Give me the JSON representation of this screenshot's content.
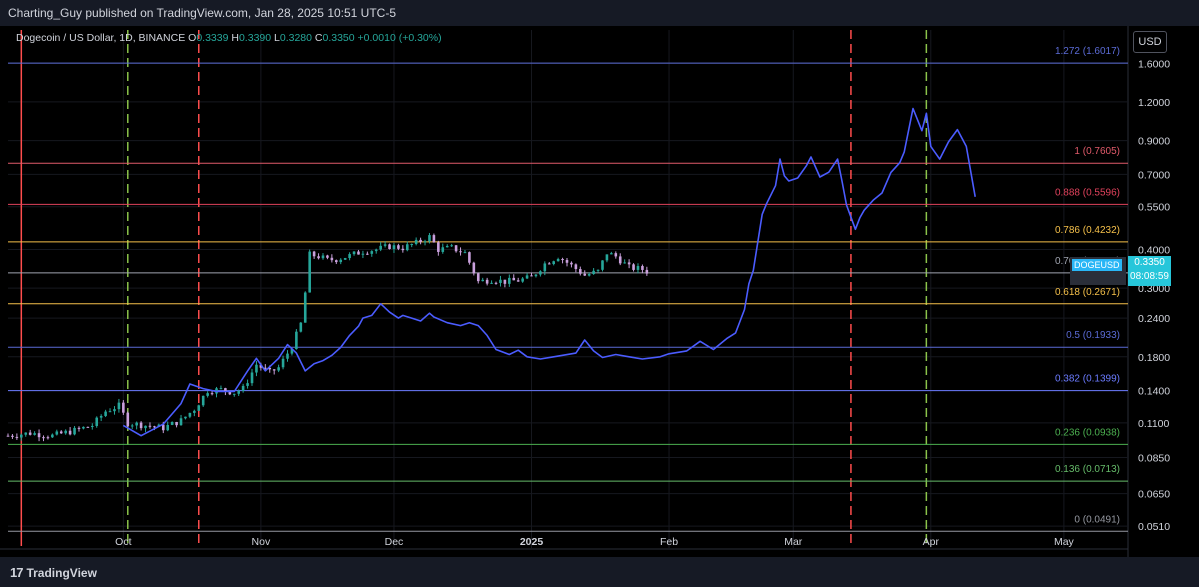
{
  "header": {
    "attribution": "Charting_Guy published on TradingView.com, Jan 28, 2025 10:51 UTC-5"
  },
  "legend": {
    "title": "Dogecoin / US Dollar, 1D, BINANCE",
    "open_label": "O",
    "open": "0.3339",
    "high_label": "H",
    "high": "0.3390",
    "low_label": "L",
    "low": "0.3280",
    "close_label": "C",
    "close": "0.3350",
    "change": "+0.0010 (+0.30%)"
  },
  "currency_button": "USD",
  "symbol_tag": "DOGEUSD",
  "current_price": "0.3350",
  "countdown": "08:08:59",
  "footer": {
    "logo_text": "TradingView"
  },
  "colors": {
    "background": "#000000",
    "candle_up": "#26a69a",
    "candle_down": "#c9a0dc",
    "projection": "#4b5cff",
    "red_vline": "#ff4d4d",
    "green_vline": "#8bc34a",
    "price_tag": "#26c6da"
  },
  "chart_data": {
    "type": "candlestick",
    "symbol": "DOGEUSD",
    "y_scale": "log",
    "ylim": [
      0.044,
      2.05
    ],
    "y_ticks": [
      1.6,
      1.2,
      0.9,
      0.7,
      0.55,
      0.4,
      0.3,
      0.24,
      0.18,
      0.14,
      0.11,
      0.085,
      0.065,
      0.051
    ],
    "y_tick_labels": [
      "1.6000",
      "1.2000",
      "0.9000",
      "0.7000",
      "0.5500",
      "0.4000",
      "0.3000",
      "0.2400",
      "0.1800",
      "0.1400",
      "0.1100",
      "0.0850",
      "0.0650",
      "0.0510"
    ],
    "x_range": [
      "2024-09-05",
      "2025-05-15"
    ],
    "x_ticks": [
      {
        "date": "2024-10-01",
        "label": "Oct"
      },
      {
        "date": "2024-11-01",
        "label": "Nov"
      },
      {
        "date": "2024-12-01",
        "label": "Dec"
      },
      {
        "date": "2025-01-01",
        "label": "2025"
      },
      {
        "date": "2025-02-01",
        "label": "Feb"
      },
      {
        "date": "2025-03-01",
        "label": "Mar"
      },
      {
        "date": "2025-04-01",
        "label": "Apr"
      },
      {
        "date": "2025-05-01",
        "label": "May"
      }
    ],
    "price_path": [
      [
        "2024-09-05",
        0.1
      ],
      [
        "2024-09-10",
        0.102
      ],
      [
        "2024-09-15",
        0.1
      ],
      [
        "2024-09-20",
        0.104
      ],
      [
        "2024-09-24",
        0.108
      ],
      [
        "2024-09-27",
        0.12
      ],
      [
        "2024-09-30",
        0.125
      ],
      [
        "2024-10-02",
        0.11
      ],
      [
        "2024-10-06",
        0.108
      ],
      [
        "2024-10-10",
        0.106
      ],
      [
        "2024-10-14",
        0.112
      ],
      [
        "2024-10-17",
        0.122
      ],
      [
        "2024-10-20",
        0.14
      ],
      [
        "2024-10-23",
        0.141
      ],
      [
        "2024-10-26",
        0.138
      ],
      [
        "2024-10-28",
        0.142
      ],
      [
        "2024-10-31",
        0.17
      ],
      [
        "2024-11-03",
        0.16
      ],
      [
        "2024-11-05",
        0.166
      ],
      [
        "2024-11-08",
        0.195
      ],
      [
        "2024-11-10",
        0.23
      ],
      [
        "2024-11-11",
        0.29
      ],
      [
        "2024-11-12",
        0.385
      ],
      [
        "2024-11-14",
        0.38
      ],
      [
        "2024-11-16",
        0.37
      ],
      [
        "2024-11-18",
        0.372
      ],
      [
        "2024-11-21",
        0.382
      ],
      [
        "2024-11-24",
        0.395
      ],
      [
        "2024-11-27",
        0.4
      ],
      [
        "2024-11-30",
        0.41
      ],
      [
        "2024-12-03",
        0.405
      ],
      [
        "2024-12-06",
        0.42
      ],
      [
        "2024-12-09",
        0.44
      ],
      [
        "2024-12-11",
        0.4
      ],
      [
        "2024-12-14",
        0.405
      ],
      [
        "2024-12-17",
        0.39
      ],
      [
        "2024-12-20",
        0.315
      ],
      [
        "2024-12-23",
        0.32
      ],
      [
        "2024-12-26",
        0.315
      ],
      [
        "2024-12-29",
        0.318
      ],
      [
        "2025-01-01",
        0.325
      ],
      [
        "2025-01-04",
        0.36
      ],
      [
        "2025-01-07",
        0.38
      ],
      [
        "2025-01-10",
        0.355
      ],
      [
        "2025-01-13",
        0.33
      ],
      [
        "2025-01-16",
        0.34
      ],
      [
        "2025-01-18",
        0.39
      ],
      [
        "2025-01-20",
        0.38
      ],
      [
        "2025-01-23",
        0.35
      ],
      [
        "2025-01-26",
        0.345
      ],
      [
        "2025-01-28",
        0.335
      ]
    ],
    "projection": [
      [
        "2024-10-01",
        0.108
      ],
      [
        "2024-10-05",
        0.1
      ],
      [
        "2024-10-10",
        0.109
      ],
      [
        "2024-10-14",
        0.127
      ],
      [
        "2024-10-16",
        0.147
      ],
      [
        "2024-10-19",
        0.142
      ],
      [
        "2024-10-22",
        0.139
      ],
      [
        "2024-10-26",
        0.139
      ],
      [
        "2024-10-29",
        0.162
      ],
      [
        "2024-10-31",
        0.178
      ],
      [
        "2024-11-02",
        0.162
      ],
      [
        "2024-11-05",
        0.178
      ],
      [
        "2024-11-07",
        0.197
      ],
      [
        "2024-11-09",
        0.185
      ],
      [
        "2024-11-11",
        0.162
      ],
      [
        "2024-11-13",
        0.171
      ],
      [
        "2024-11-15",
        0.175
      ],
      [
        "2024-11-17",
        0.182
      ],
      [
        "2024-11-19",
        0.193
      ],
      [
        "2024-11-21",
        0.211
      ],
      [
        "2024-11-23",
        0.226
      ],
      [
        "2024-11-24",
        0.24
      ],
      [
        "2024-11-26",
        0.245
      ],
      [
        "2024-11-28",
        0.267
      ],
      [
        "2024-11-30",
        0.251
      ],
      [
        "2024-12-02",
        0.24
      ],
      [
        "2024-12-03",
        0.245
      ],
      [
        "2024-12-05",
        0.24
      ],
      [
        "2024-12-07",
        0.235
      ],
      [
        "2024-12-09",
        0.249
      ],
      [
        "2024-12-10",
        0.242
      ],
      [
        "2024-12-13",
        0.232
      ],
      [
        "2024-12-16",
        0.227
      ],
      [
        "2024-12-18",
        0.232
      ],
      [
        "2024-12-20",
        0.227
      ],
      [
        "2024-12-22",
        0.211
      ],
      [
        "2024-12-24",
        0.19
      ],
      [
        "2024-12-27",
        0.183
      ],
      [
        "2024-12-29",
        0.189
      ],
      [
        "2024-12-31",
        0.18
      ],
      [
        "2025-01-03",
        0.177
      ],
      [
        "2025-01-06",
        0.18
      ],
      [
        "2025-01-08",
        0.182
      ],
      [
        "2025-01-11",
        0.185
      ],
      [
        "2025-01-13",
        0.204
      ],
      [
        "2025-01-15",
        0.188
      ],
      [
        "2025-01-17",
        0.179
      ],
      [
        "2025-01-20",
        0.183
      ],
      [
        "2025-01-23",
        0.18
      ],
      [
        "2025-01-26",
        0.177
      ],
      [
        "2025-01-30",
        0.18
      ],
      [
        "2025-02-01",
        0.184
      ],
      [
        "2025-02-05",
        0.188
      ],
      [
        "2025-02-08",
        0.202
      ],
      [
        "2025-02-11",
        0.19
      ],
      [
        "2025-02-14",
        0.206
      ],
      [
        "2025-02-16",
        0.215
      ],
      [
        "2025-02-18",
        0.256
      ],
      [
        "2025-02-19",
        0.31
      ],
      [
        "2025-02-20",
        0.342
      ],
      [
        "2025-02-22",
        0.52
      ],
      [
        "2025-02-23",
        0.563
      ],
      [
        "2025-02-25",
        0.643
      ],
      [
        "2025-02-26",
        0.784
      ],
      [
        "2025-02-27",
        0.692
      ],
      [
        "2025-02-28",
        0.666
      ],
      [
        "2025-03-02",
        0.681
      ],
      [
        "2025-03-04",
        0.748
      ],
      [
        "2025-03-05",
        0.797
      ],
      [
        "2025-03-07",
        0.686
      ],
      [
        "2025-03-09",
        0.711
      ],
      [
        "2025-03-11",
        0.784
      ],
      [
        "2025-03-12",
        0.663
      ],
      [
        "2025-03-13",
        0.557
      ],
      [
        "2025-03-15",
        0.465
      ],
      [
        "2025-03-16",
        0.506
      ],
      [
        "2025-03-17",
        0.536
      ],
      [
        "2025-03-19",
        0.577
      ],
      [
        "2025-03-21",
        0.609
      ],
      [
        "2025-03-23",
        0.71
      ],
      [
        "2025-03-25",
        0.763
      ],
      [
        "2025-03-26",
        0.826
      ],
      [
        "2025-03-28",
        1.143
      ],
      [
        "2025-03-30",
        0.969
      ],
      [
        "2025-03-31",
        1.103
      ],
      [
        "2025-04-01",
        0.862
      ],
      [
        "2025-04-03",
        0.784
      ],
      [
        "2025-04-05",
        0.891
      ],
      [
        "2025-04-07",
        0.977
      ],
      [
        "2025-04-09",
        0.862
      ],
      [
        "2025-04-11",
        0.592
      ]
    ],
    "fib_levels": [
      {
        "label": "1.272 (1.6017)",
        "value": 1.6017,
        "color": "#5b6bd6"
      },
      {
        "label": "1 (0.7605)",
        "value": 0.7605,
        "color": "#e05a6a"
      },
      {
        "label": "0.888 (0.5596)",
        "value": 0.5596,
        "color": "#e0425c"
      },
      {
        "label": "0.786 (0.4232)",
        "value": 0.4232,
        "color": "#f5c04a"
      },
      {
        "label": "0.702 (0.3362)",
        "value": 0.3362,
        "color": "#a0a4b0"
      },
      {
        "label": "0.618 (0.2671)",
        "value": 0.2671,
        "color": "#f5c04a"
      },
      {
        "label": "0.5 (0.1933)",
        "value": 0.1933,
        "color": "#5b6bd6"
      },
      {
        "label": "0.382 (0.1399)",
        "value": 0.1399,
        "color": "#6b7bff"
      },
      {
        "label": "0.236 (0.0938)",
        "value": 0.0938,
        "color": "#4caf50"
      },
      {
        "label": "0.136 (0.0713)",
        "value": 0.0713,
        "color": "#66bb6a"
      },
      {
        "label": "0 (0.0491)",
        "value": 0.0491,
        "color": "#9598a1"
      }
    ],
    "vertical_markers": [
      {
        "date": "2024-09-08",
        "color": "#ff4d4d",
        "style": "solid"
      },
      {
        "date": "2024-10-02",
        "color": "#8bc34a",
        "style": "dashed"
      },
      {
        "date": "2024-10-18",
        "color": "#ff4d4d",
        "style": "dashed"
      },
      {
        "date": "2025-03-14",
        "color": "#ff4d4d",
        "style": "dashed"
      },
      {
        "date": "2025-03-31",
        "color": "#8bc34a",
        "style": "dashed"
      }
    ]
  }
}
